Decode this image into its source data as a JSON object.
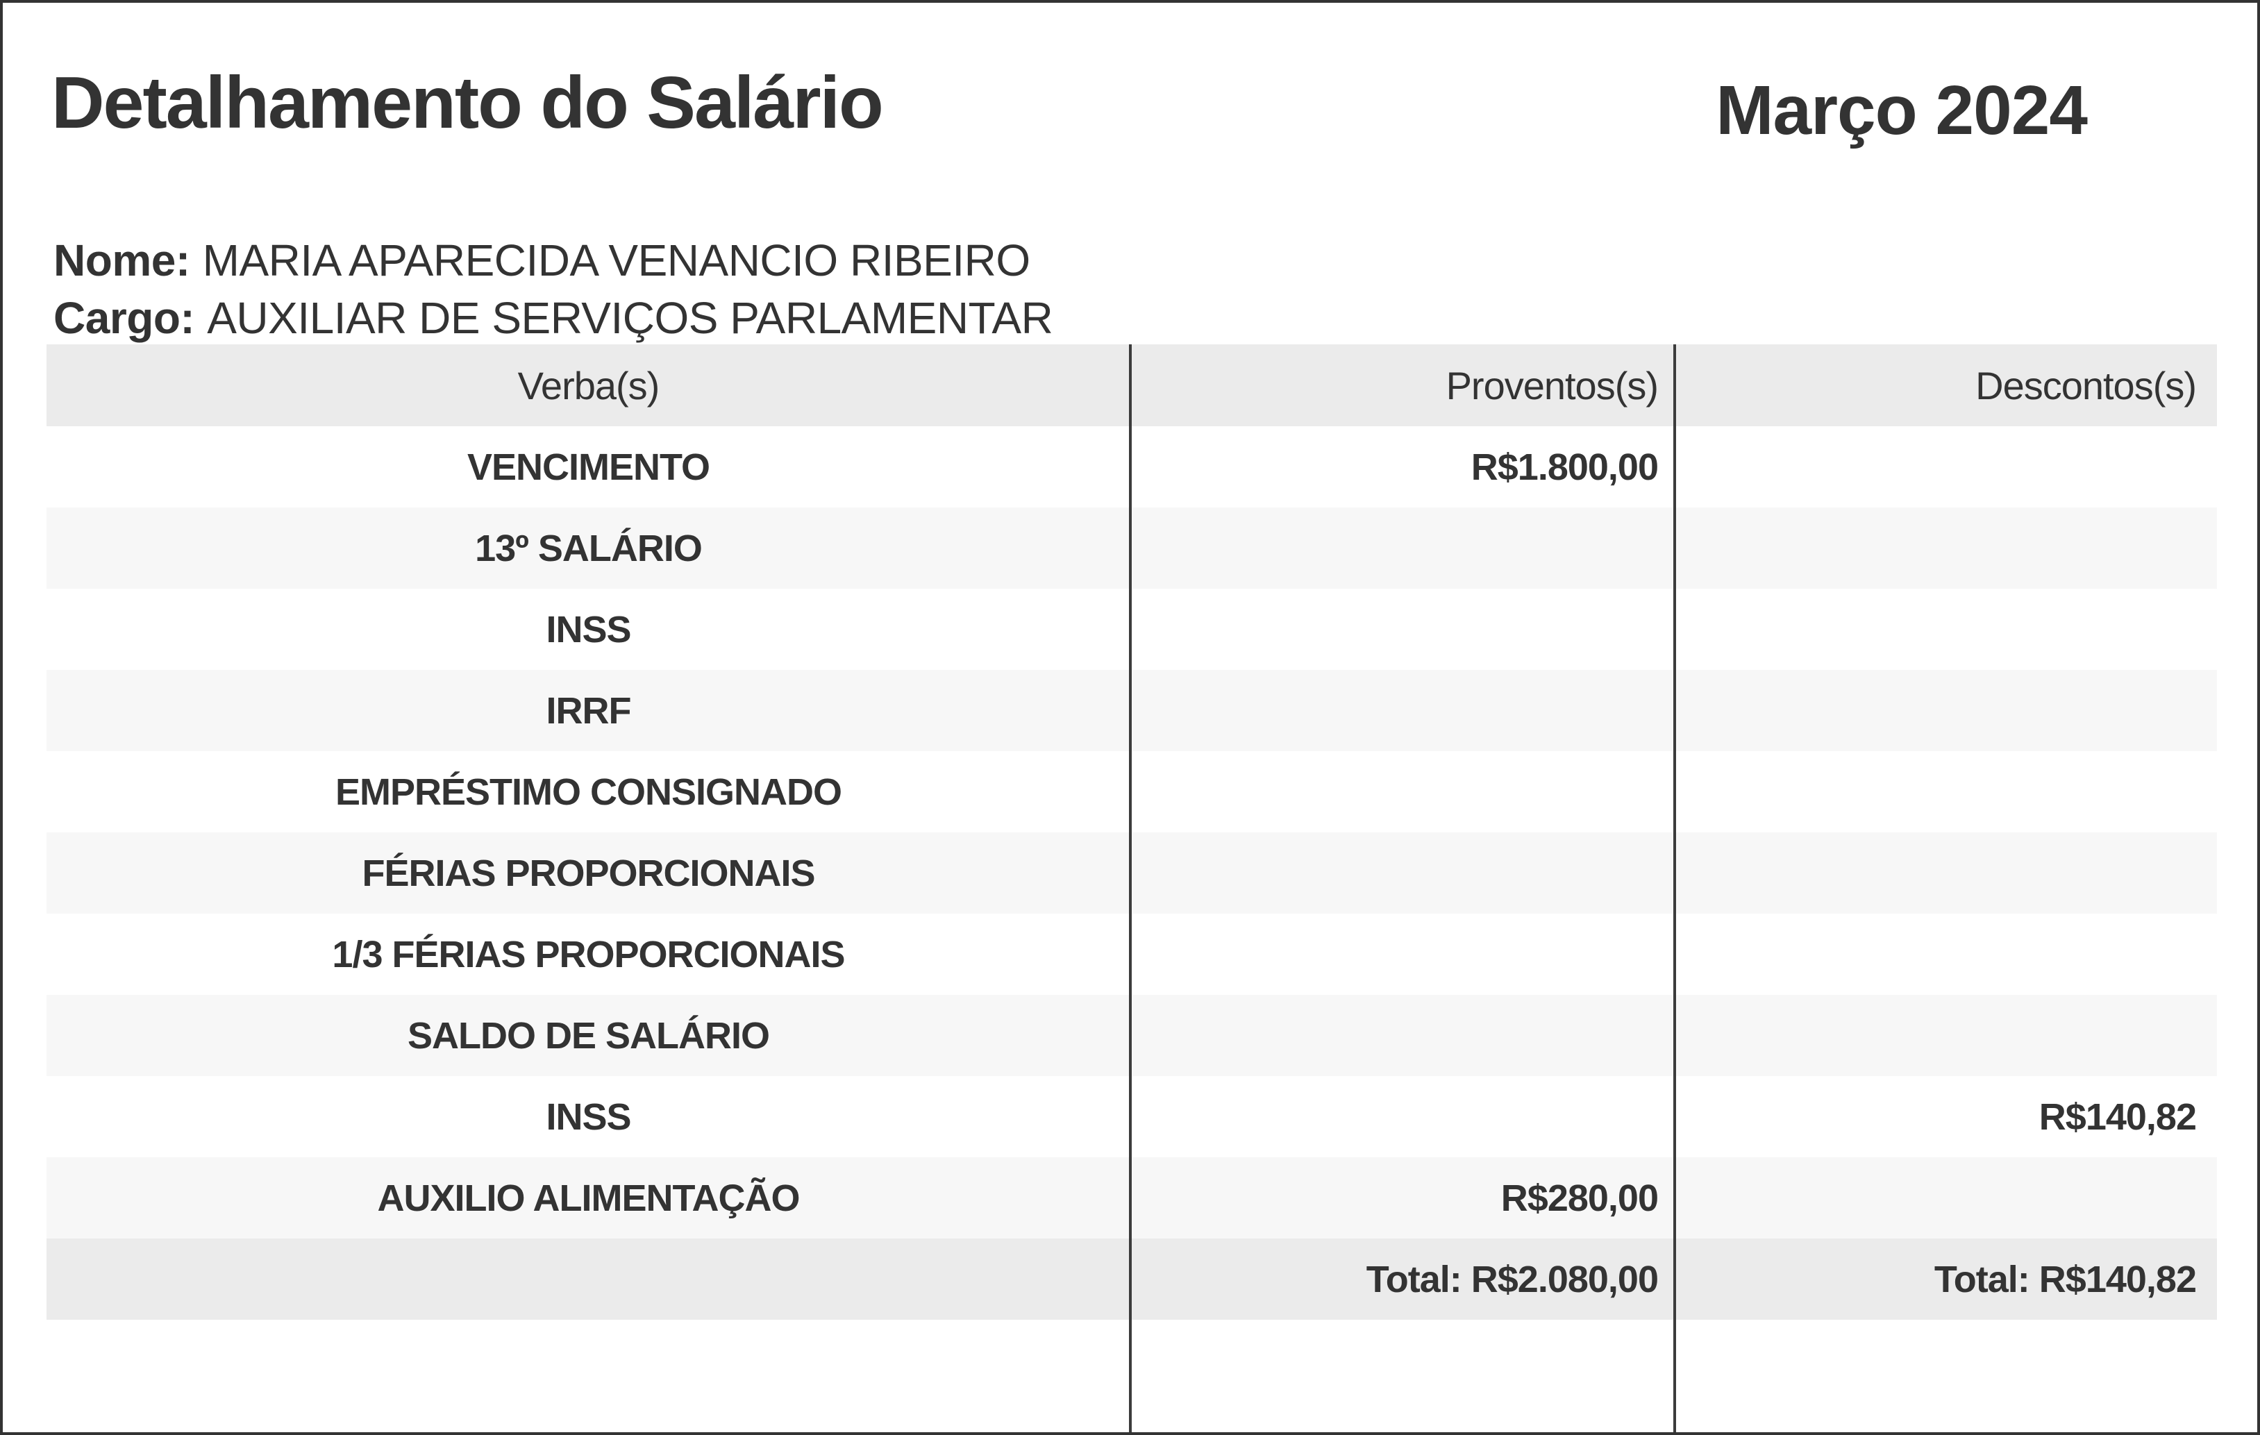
{
  "page": {
    "title": "Detalhamento do Salário",
    "period": "Março 2024"
  },
  "employee": {
    "name_label": "Nome:",
    "name": "MARIA APARECIDA VENANCIO RIBEIRO",
    "role_label": "Cargo:",
    "role": "AUXILIAR DE SERVIÇOS PARLAMENTAR"
  },
  "table": {
    "headers": [
      "Verba(s)",
      "Proventos(s)",
      "Descontos(s)"
    ],
    "rows": [
      {
        "verba": "VENCIMENTO",
        "proventos": "R$1.800,00",
        "descontos": ""
      },
      {
        "verba": "13º SALÁRIO",
        "proventos": "",
        "descontos": ""
      },
      {
        "verba": "INSS",
        "proventos": "",
        "descontos": ""
      },
      {
        "verba": "IRRF",
        "proventos": "",
        "descontos": ""
      },
      {
        "verba": "EMPRÉSTIMO CONSIGNADO",
        "proventos": "",
        "descontos": ""
      },
      {
        "verba": "FÉRIAS PROPORCIONAIS",
        "proventos": "",
        "descontos": ""
      },
      {
        "verba": "1/3 FÉRIAS PROPORCIONAIS",
        "proventos": "",
        "descontos": ""
      },
      {
        "verba": "SALDO DE SALÁRIO",
        "proventos": "",
        "descontos": ""
      },
      {
        "verba": "INSS",
        "proventos": "",
        "descontos": "R$140,82"
      },
      {
        "verba": "AUXILIO ALIMENTAÇÃO",
        "proventos": "R$280,00",
        "descontos": ""
      }
    ],
    "totals": {
      "proventos": "Total: R$2.080,00",
      "descontos": "Total: R$140,82"
    }
  },
  "colors": {
    "text": "#333333",
    "page_border": "#333333",
    "column_divider": "#3c3c3c",
    "header_bg": "#ebebeb",
    "stripe_bg": "#f7f7f7",
    "total_row_bg": "#ebebeb"
  }
}
